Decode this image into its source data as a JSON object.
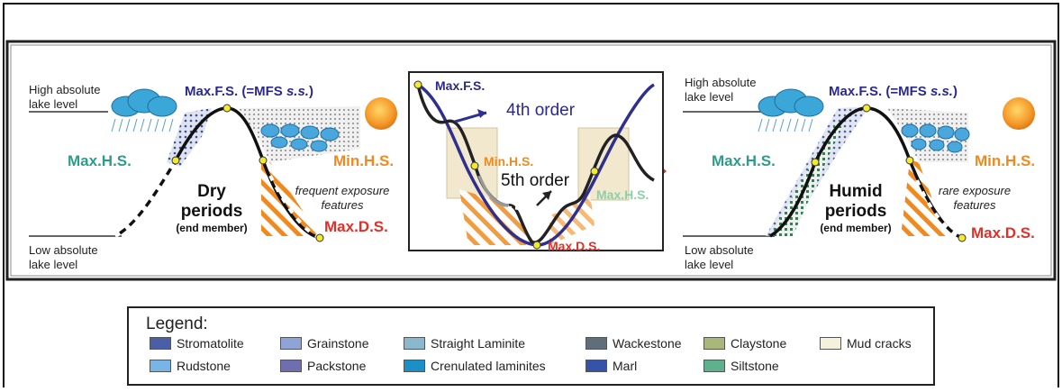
{
  "left_panel": {
    "high_level": [
      "High absolute",
      "lake level"
    ],
    "low_level": [
      "Low absolute",
      "lake level"
    ],
    "max_fs": "Max.F.S. (=MFS ",
    "ss": "s.s.",
    "close_paren": ")",
    "max_hs": "Max.H.S.",
    "min_hs": "Min.H.S.",
    "max_ds": "Max.D.S.",
    "period": [
      "Dry",
      "periods"
    ],
    "end_member": "(end member)",
    "exposure": [
      "frequent exposure",
      "features"
    ]
  },
  "center_panel": {
    "max_fs": "Max.F.S.",
    "fourth_order": "4th order",
    "min_hs": "Min.H.S.",
    "fifth_order": "5th order",
    "max_hs": "Max.H.S.",
    "max_ds": "Max.D.S."
  },
  "right_panel": {
    "high_level": [
      "High absolute",
      "lake level"
    ],
    "low_level": [
      "Low absolute",
      "lake level"
    ],
    "max_fs": "Max.F.S. (=MFS ",
    "ss": "s.s.",
    "close_paren": ")",
    "max_hs": "Max.H.S.",
    "min_hs": "Min.H.S.",
    "max_ds": "Max.D.S.",
    "period": [
      "Humid",
      "periods"
    ],
    "end_member": "(end member)",
    "exposure": [
      "rare exposure",
      "features"
    ]
  },
  "legend": {
    "title": "Legend:",
    "items": [
      {
        "label": "Stromatolite",
        "color": "#4b5fa8"
      },
      {
        "label": "Grainstone",
        "color": "#8ea4d6"
      },
      {
        "label": "Straight Laminite",
        "color": "#8ab8cf"
      },
      {
        "label": "Wackestone",
        "color": "#5e6e7a"
      },
      {
        "label": "Claystone",
        "color": "#a9b77a"
      },
      {
        "label": "Mud cracks",
        "color": "#f4f1dc"
      },
      {
        "label": "Rudstone",
        "color": "#79b4e6"
      },
      {
        "label": "Packstone",
        "color": "#6f6fb0"
      },
      {
        "label": "Crenulated laminites",
        "color": "#1a8fc8"
      },
      {
        "label": "Marl",
        "color": "#3553a8"
      },
      {
        "label": "Siltstone",
        "color": "#5fb08c"
      }
    ]
  },
  "colors": {
    "teal": "#2e9c8c",
    "orange": "#f08a1e",
    "red": "#e0302a",
    "navy": "#2b2a8c",
    "curve_blue": "#2f2f8f"
  }
}
